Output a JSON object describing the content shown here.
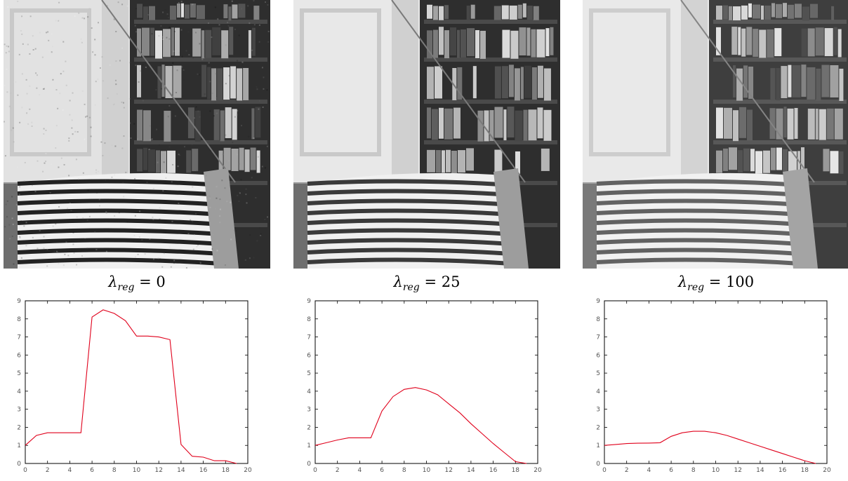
{
  "panels": [
    {
      "caption_symbol": "λ",
      "caption_sub": "reg",
      "caption_value": "= 0",
      "style": "noisy"
    },
    {
      "caption_symbol": "λ",
      "caption_sub": "reg",
      "caption_value": "= 25",
      "style": "medium"
    },
    {
      "caption_symbol": "λ",
      "caption_sub": "reg",
      "caption_value": "= 100",
      "style": "smooth"
    }
  ],
  "colors": {
    "line": "#e0001b",
    "axis": "#000000",
    "tick_label": "#555555"
  },
  "chart_data": [
    {
      "type": "line",
      "title": "",
      "xlabel": "",
      "ylabel": "",
      "xlim": [
        0,
        20
      ],
      "ylim": [
        0,
        9
      ],
      "xticks": [
        0,
        2,
        4,
        6,
        8,
        10,
        12,
        14,
        16,
        18,
        20
      ],
      "yticks": [
        0,
        1,
        2,
        3,
        4,
        5,
        6,
        7,
        8,
        9
      ],
      "grid": false,
      "series": [
        {
          "x": [
            0,
            1,
            2,
            3,
            4,
            5,
            6,
            7,
            8,
            9,
            10,
            11,
            12,
            13,
            14,
            15,
            16,
            17,
            18,
            19
          ],
          "values": [
            1.0,
            1.55,
            1.7,
            1.7,
            1.7,
            1.7,
            8.1,
            8.5,
            8.3,
            7.9,
            7.05,
            7.05,
            7.0,
            6.85,
            1.05,
            0.4,
            0.35,
            0.15,
            0.15,
            0.0
          ]
        }
      ]
    },
    {
      "type": "line",
      "title": "",
      "xlabel": "",
      "ylabel": "",
      "xlim": [
        0,
        20
      ],
      "ylim": [
        0,
        9
      ],
      "xticks": [
        0,
        2,
        4,
        6,
        8,
        10,
        12,
        14,
        16,
        18,
        20
      ],
      "yticks": [
        0,
        1,
        2,
        3,
        4,
        5,
        6,
        7,
        8,
        9
      ],
      "grid": false,
      "series": [
        {
          "x": [
            0,
            1,
            2,
            3,
            4,
            5,
            6,
            7,
            8,
            9,
            10,
            11,
            12,
            13,
            14,
            15,
            16,
            17,
            18,
            19
          ],
          "values": [
            1.0,
            1.15,
            1.3,
            1.42,
            1.42,
            1.42,
            2.9,
            3.7,
            4.1,
            4.2,
            4.07,
            3.8,
            3.3,
            2.8,
            2.2,
            1.65,
            1.1,
            0.6,
            0.1,
            0.0
          ]
        }
      ]
    },
    {
      "type": "line",
      "title": "",
      "xlabel": "",
      "ylabel": "",
      "xlim": [
        0,
        20
      ],
      "ylim": [
        0,
        9
      ],
      "xticks": [
        0,
        2,
        4,
        6,
        8,
        10,
        12,
        14,
        16,
        18,
        20
      ],
      "yticks": [
        0,
        1,
        2,
        3,
        4,
        5,
        6,
        7,
        8,
        9
      ],
      "grid": false,
      "series": [
        {
          "x": [
            0,
            1,
            2,
            3,
            4,
            5,
            6,
            7,
            8,
            9,
            10,
            11,
            12,
            13,
            14,
            15,
            16,
            17,
            18,
            19
          ],
          "values": [
            1.0,
            1.05,
            1.1,
            1.12,
            1.13,
            1.15,
            1.5,
            1.7,
            1.78,
            1.78,
            1.7,
            1.55,
            1.35,
            1.15,
            0.95,
            0.75,
            0.55,
            0.35,
            0.15,
            0.0
          ]
        }
      ]
    }
  ]
}
